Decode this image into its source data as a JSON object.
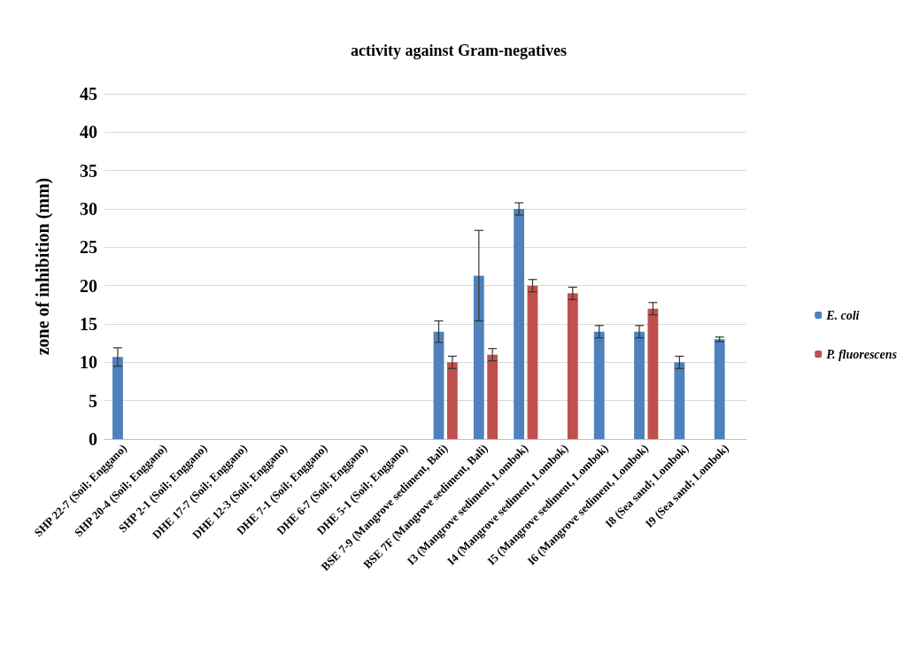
{
  "chart_data": {
    "type": "bar",
    "title": "activity against Gram-negatives",
    "ylabel": "zone of inhibition (mm)",
    "categories": [
      "SHP 22-7 (Soil; Enggano)",
      "SHP 20-4 (Soil; Enggano)",
      "SHP 2-1 (Soil; Enggano)",
      "DHE 17-7 (Soil; Enggano)",
      "DHE 12-3 (Soil; Enggano)",
      "DHE 7-1 (Soil; Enggano)",
      "DHE 6-7 (Soil; Enggano)",
      "DHE 5-1 (Soil; Enggano)",
      "BSE 7-9 (Mangrove sediment, Bali)",
      "BSE 7F (Mangrove sediment, Bali)",
      "I3 (Mangrove sediment, Lombok)",
      "I4 (Mangrove sediment, Lombok)",
      "I5 (Mangrove sediment, Lombok)",
      "I6 (Mangrove sediment, Lombok)",
      "I8 (Sea sand; Lombok)",
      "I9 (Sea sand; Lombok)"
    ],
    "series": [
      {
        "name": "E. coli",
        "color": "#4f81bd",
        "values": [
          10.7,
          0,
          0,
          0,
          0,
          0,
          0,
          0,
          14,
          21.3,
          30,
          0,
          14,
          14,
          10,
          13
        ],
        "errors": [
          1.2,
          null,
          null,
          null,
          null,
          null,
          null,
          null,
          1.4,
          5.9,
          0.8,
          null,
          0.8,
          0.8,
          0.8,
          0.3
        ]
      },
      {
        "name": "P. fluorescens",
        "color": "#c0504d",
        "values": [
          0,
          0,
          0,
          0,
          0,
          0,
          0,
          0,
          10,
          11,
          20,
          19,
          0,
          17,
          0,
          0
        ],
        "errors": [
          null,
          null,
          null,
          null,
          null,
          null,
          null,
          null,
          0.8,
          0.8,
          0.8,
          0.8,
          null,
          0.8,
          null,
          null
        ]
      }
    ],
    "ylim": [
      0,
      45
    ],
    "yticks": [
      0,
      5,
      10,
      15,
      20,
      25,
      30,
      35,
      40,
      45
    ],
    "grid": "y",
    "legend": "right"
  }
}
